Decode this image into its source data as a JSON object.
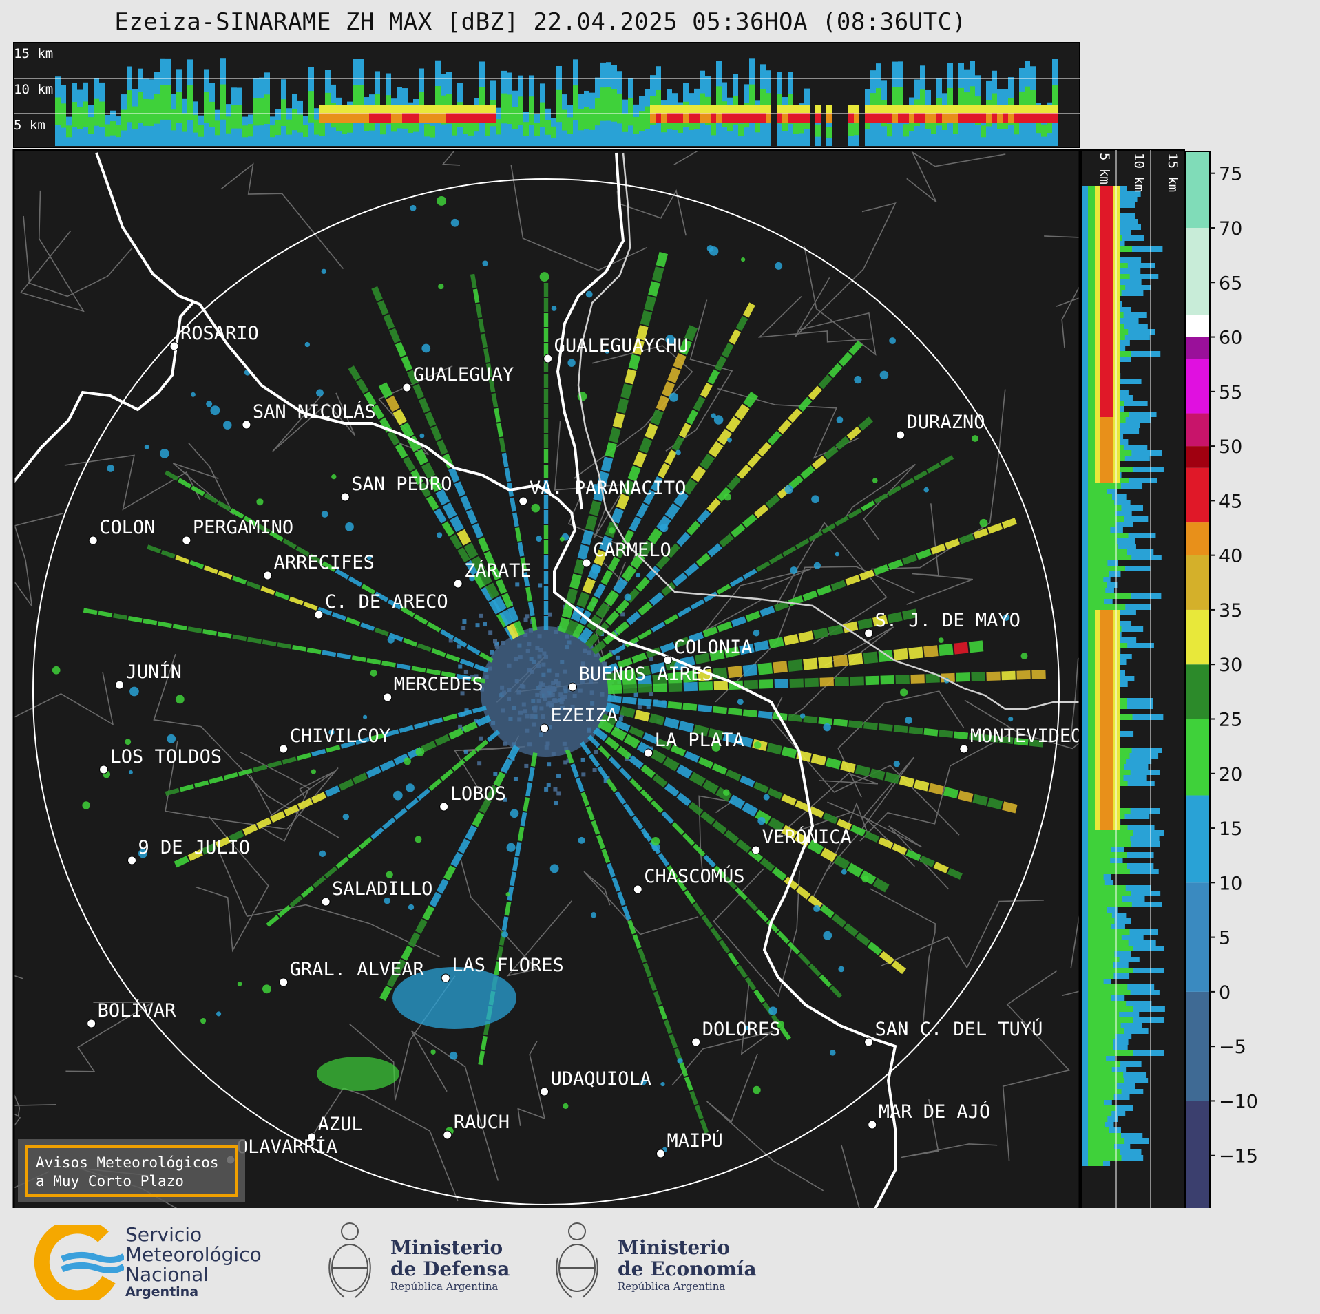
{
  "title": "Ezeiza-SINARAME ZH MAX [dBZ] 22.04.2025 05:36HOA (08:36UTC)",
  "top_panel_labels": [
    "15 km",
    "10 km",
    "5 km"
  ],
  "side_panel_labels": [
    "5 km",
    "10 km",
    "15 km"
  ],
  "colorbar": {
    "ticks": [
      "75",
      "70",
      "65",
      "60",
      "55",
      "50",
      "45",
      "40",
      "35",
      "30",
      "25",
      "20",
      "15",
      "10",
      "5",
      "0",
      "−5",
      "−10",
      "−15"
    ],
    "bands": [
      {
        "from": -20,
        "to": -10,
        "color": "#3b3f6e"
      },
      {
        "from": -10,
        "to": 0,
        "color": "#3f6a94"
      },
      {
        "from": 0,
        "to": 10,
        "color": "#3a8ac0"
      },
      {
        "from": 10,
        "to": 18,
        "color": "#29a2d6"
      },
      {
        "from": 18,
        "to": 25,
        "color": "#3fd13a"
      },
      {
        "from": 25,
        "to": 30,
        "color": "#2c8a2a"
      },
      {
        "from": 30,
        "to": 35,
        "color": "#e8e83a"
      },
      {
        "from": 35,
        "to": 40,
        "color": "#d4b02a"
      },
      {
        "from": 40,
        "to": 43,
        "color": "#e8901a"
      },
      {
        "from": 43,
        "to": 48,
        "color": "#e01828"
      },
      {
        "from": 48,
        "to": 50,
        "color": "#a00010"
      },
      {
        "from": 50,
        "to": 53,
        "color": "#c8146a"
      },
      {
        "from": 53,
        "to": 58,
        "color": "#e010e0"
      },
      {
        "from": 58,
        "to": 60,
        "color": "#9a109a"
      },
      {
        "from": 60,
        "to": 62,
        "color": "#ffffff"
      },
      {
        "from": 62,
        "to": 70,
        "color": "#c8ecd8"
      },
      {
        "from": 70,
        "to": 77,
        "color": "#80dcb8"
      }
    ]
  },
  "cities": [
    {
      "name": "ROSARIO",
      "lon": -60.64,
      "lat": -32.95
    },
    {
      "name": "GUALEGUAYCHU",
      "lon": -58.52,
      "lat": -33.01
    },
    {
      "name": "GUALEGUAY",
      "lon": -59.32,
      "lat": -33.15
    },
    {
      "name": "SAN NICOLÁS",
      "lon": -60.23,
      "lat": -33.33
    },
    {
      "name": "DURAZNO",
      "lon": -56.52,
      "lat": -33.38
    },
    {
      "name": "SAN PEDRO",
      "lon": -59.67,
      "lat": -33.68
    },
    {
      "name": "VA. PARANACITO",
      "lon": -58.66,
      "lat": -33.7
    },
    {
      "name": "COLON",
      "lon": -61.1,
      "lat": -33.89
    },
    {
      "name": "PERGAMINO",
      "lon": -60.57,
      "lat": -33.89
    },
    {
      "name": "CARMELO",
      "lon": -58.3,
      "lat": -34.0
    },
    {
      "name": "ARRECIFES",
      "lon": -60.11,
      "lat": -34.06
    },
    {
      "name": "ZÁRATE",
      "lon": -59.03,
      "lat": -34.1
    },
    {
      "name": "S. J. DE MAYO",
      "lon": -56.7,
      "lat": -34.34
    },
    {
      "name": "C. DE ARECO",
      "lon": -59.82,
      "lat": -34.25
    },
    {
      "name": "COLONIA",
      "lon": -57.84,
      "lat": -34.47
    },
    {
      "name": "BUENOS AIRES",
      "lon": -58.38,
      "lat": -34.6
    },
    {
      "name": "MERCEDES",
      "lon": -59.43,
      "lat": -34.65
    },
    {
      "name": "JUNÍN",
      "lon": -60.95,
      "lat": -34.59
    },
    {
      "name": "EZEIZA",
      "lon": -58.54,
      "lat": -34.8
    },
    {
      "name": "CHIVILCOY",
      "lon": -60.02,
      "lat": -34.9
    },
    {
      "name": "LA PLATA",
      "lon": -57.95,
      "lat": -34.92
    },
    {
      "name": "MONTEVIDEO",
      "lon": -56.16,
      "lat": -34.9
    },
    {
      "name": "LOS TOLDOS",
      "lon": -61.04,
      "lat": -35.0
    },
    {
      "name": "LOBOS",
      "lon": -59.11,
      "lat": -35.18
    },
    {
      "name": "VERÓNICA",
      "lon": -57.34,
      "lat": -35.39
    },
    {
      "name": "9 DE JULIO",
      "lon": -60.88,
      "lat": -35.44
    },
    {
      "name": "CHASCOMÚS",
      "lon": -58.01,
      "lat": -35.58
    },
    {
      "name": "SALADILLO",
      "lon": -59.78,
      "lat": -35.64
    },
    {
      "name": "GRAL. ALVEAR",
      "lon": -60.02,
      "lat": -36.03
    },
    {
      "name": "LAS FLORES",
      "lon": -59.1,
      "lat": -36.01
    },
    {
      "name": "BOLÍVAR",
      "lon": -61.11,
      "lat": -36.23
    },
    {
      "name": "DOLORES",
      "lon": -57.68,
      "lat": -36.32
    },
    {
      "name": "SAN C. DEL TUYÚ",
      "lon": -56.7,
      "lat": -36.32
    },
    {
      "name": "UDAQUIOLA",
      "lon": -58.54,
      "lat": -36.56
    },
    {
      "name": "RAUCH",
      "lon": -59.09,
      "lat": -36.77
    },
    {
      "name": "MAR DE AJÓ",
      "lon": -56.68,
      "lat": -36.72
    },
    {
      "name": "AZUL",
      "lon": -59.86,
      "lat": -36.78
    },
    {
      "name": "OLAVARRÍA",
      "lon": -60.32,
      "lat": -36.89
    },
    {
      "name": "MAIPÚ",
      "lon": -57.88,
      "lat": -36.86
    }
  ],
  "notice": {
    "line1": "Avisos Meteorológicos",
    "line2": "a Muy Corto Plazo"
  },
  "logos": {
    "smn": {
      "line1": "Servicio",
      "line2": "Meteorológico",
      "line3": "Nacional",
      "line4": "Argentina",
      "color_ring": "#f5a800",
      "color_waves": "#3aa0dc"
    },
    "defensa": {
      "line1": "Ministerio",
      "line2": "de Defensa",
      "line3": "República Argentina"
    },
    "economia": {
      "line1": "Ministerio",
      "line2": "de Economía",
      "line3": "República Argentina"
    }
  }
}
